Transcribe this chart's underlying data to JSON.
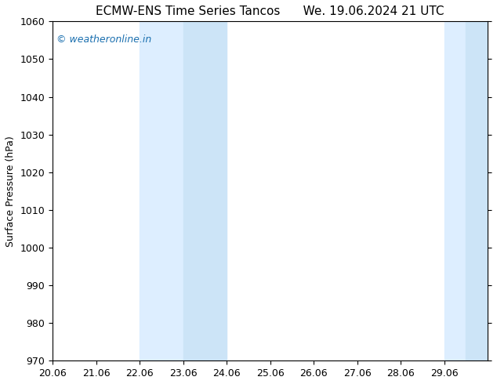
{
  "title_left": "ECMW-ENS Time Series Tancos",
  "title_right": "We. 19.06.2024 21 UTC",
  "ylabel": "Surface Pressure (hPa)",
  "ylim": [
    970,
    1060
  ],
  "yticks": [
    970,
    980,
    990,
    1000,
    1010,
    1020,
    1030,
    1040,
    1050,
    1060
  ],
  "xlim": [
    20.06,
    30.06
  ],
  "xticks": [
    20.06,
    21.06,
    22.06,
    23.06,
    24.06,
    25.06,
    26.06,
    27.06,
    28.06,
    29.06
  ],
  "xticklabels": [
    "20.06",
    "21.06",
    "22.06",
    "23.06",
    "24.06",
    "25.06",
    "26.06",
    "27.06",
    "28.06",
    "29.06"
  ],
  "shaded_regions": [
    {
      "xmin": 22.06,
      "xmax": 23.06
    },
    {
      "xmin": 23.06,
      "xmax": 24.06
    },
    {
      "xmin": 29.06,
      "xmax": 29.56
    },
    {
      "xmin": 29.56,
      "xmax": 30.06
    }
  ],
  "shade_color_light": "#ddeeff",
  "shade_color_medium": "#cce4f7",
  "background_color": "#ffffff",
  "watermark_text": "© weatheronline.in",
  "watermark_color": "#1a6faf",
  "title_fontsize": 11,
  "ylabel_fontsize": 9,
  "tick_fontsize": 9,
  "watermark_fontsize": 9,
  "figsize": [
    6.34,
    4.9
  ],
  "dpi": 100
}
